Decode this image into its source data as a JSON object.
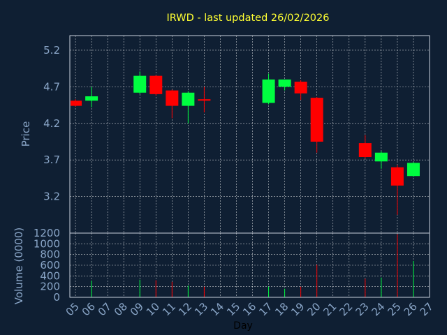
{
  "chart_data": {
    "type": "candlestick",
    "title": "IRWD - last updated 26/02/2026",
    "xlabel": "Day",
    "ylabel_price": "Price",
    "ylabel_volume": "Volume (0000)",
    "x_ticks": [
      "05",
      "06",
      "07",
      "08",
      "09",
      "10",
      "11",
      "12",
      "13",
      "14",
      "15",
      "16",
      "17",
      "18",
      "19",
      "20",
      "21",
      "22",
      "23",
      "24",
      "25",
      "26",
      "27"
    ],
    "price_ticks": [
      "5.2",
      "4.7",
      "4.2",
      "3.7",
      "3.2"
    ],
    "volume_ticks": [
      "1200",
      "1000",
      "800",
      "600",
      "400",
      "200",
      "0"
    ],
    "price_range": [
      2.7,
      5.4
    ],
    "volume_range": [
      0,
      1200
    ],
    "grid": true,
    "colors": {
      "up": "#00ff40",
      "down": "#ff0000",
      "background": "#0f1f33",
      "title": "#ffff33",
      "text": "#8aa6c8"
    },
    "candles": [
      {
        "day": 5,
        "open": 4.51,
        "high": 4.53,
        "low": 4.43,
        "close": 4.44,
        "volume": 0
      },
      {
        "day": 6,
        "open": 4.51,
        "high": 4.7,
        "low": 4.42,
        "close": 4.57,
        "volume": 310
      },
      {
        "day": 9,
        "open": 4.62,
        "high": 4.91,
        "low": 4.6,
        "close": 4.85,
        "volume": 330
      },
      {
        "day": 10,
        "open": 4.85,
        "high": 4.86,
        "low": 4.58,
        "close": 4.6,
        "volume": 320
      },
      {
        "day": 11,
        "open": 4.65,
        "high": 4.66,
        "low": 4.27,
        "close": 4.44,
        "volume": 290
      },
      {
        "day": 12,
        "open": 4.44,
        "high": 4.64,
        "low": 4.2,
        "close": 4.62,
        "volume": 220
      },
      {
        "day": 13,
        "open": 4.53,
        "high": 4.7,
        "low": 4.35,
        "close": 4.51,
        "volume": 200
      },
      {
        "day": 17,
        "open": 4.48,
        "high": 4.88,
        "low": 4.46,
        "close": 4.8,
        "volume": 200
      },
      {
        "day": 18,
        "open": 4.7,
        "high": 4.8,
        "low": 4.65,
        "close": 4.8,
        "volume": 160
      },
      {
        "day": 19,
        "open": 4.77,
        "high": 4.79,
        "low": 4.52,
        "close": 4.61,
        "volume": 200
      },
      {
        "day": 20,
        "open": 4.55,
        "high": 4.56,
        "low": 3.8,
        "close": 3.95,
        "volume": 610
      },
      {
        "day": 23,
        "open": 3.93,
        "high": 4.04,
        "low": 3.72,
        "close": 3.74,
        "volume": 350
      },
      {
        "day": 24,
        "open": 3.68,
        "high": 3.82,
        "low": 3.58,
        "close": 3.8,
        "volume": 370
      },
      {
        "day": 25,
        "open": 3.6,
        "high": 3.63,
        "low": 2.95,
        "close": 3.35,
        "volume": 1180
      },
      {
        "day": 26,
        "open": 3.48,
        "high": 3.67,
        "low": 3.47,
        "close": 3.66,
        "volume": 680
      }
    ]
  }
}
